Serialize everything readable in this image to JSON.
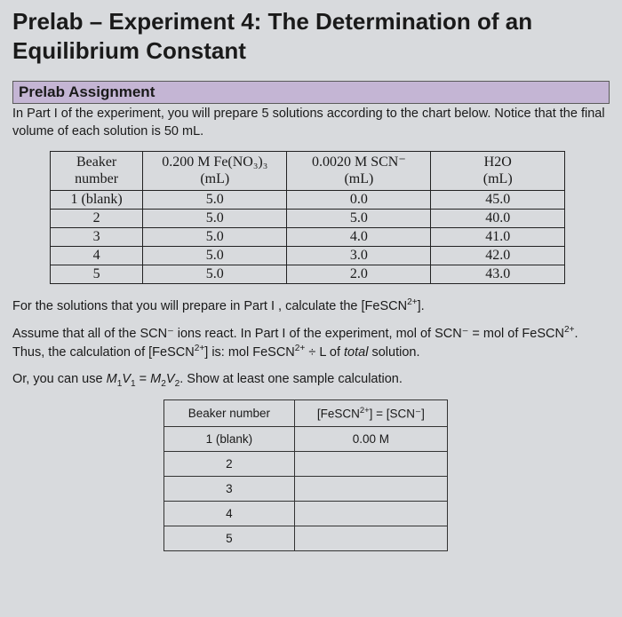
{
  "title": "Prelab – Experiment 4: The Determination of an Equilibrium Constant",
  "section_header": "Prelab Assignment",
  "intro": "In Part I of the experiment, you will prepare 5 solutions according to the chart below. Notice that the final volume of each solution is 50 mL.",
  "table1": {
    "headers": {
      "c0a": "Beaker",
      "c0b": "number",
      "c1a": "0.200 M Fe(NO₃)₃",
      "c1b": "(mL)",
      "c2a": "0.0020 M SCN⁻",
      "c2b": "(mL)",
      "c3a": "H2O",
      "c3b": "(mL)"
    },
    "col_widths": [
      "18%",
      "28%",
      "28%",
      "26%"
    ],
    "rows": [
      [
        "1 (blank)",
        "5.0",
        "0.0",
        "45.0"
      ],
      [
        "2",
        "5.0",
        "5.0",
        "40.0"
      ],
      [
        "3",
        "5.0",
        "4.0",
        "41.0"
      ],
      [
        "4",
        "5.0",
        "3.0",
        "42.0"
      ],
      [
        "5",
        "5.0",
        "2.0",
        "43.0"
      ]
    ]
  },
  "para1_html": "For the solutions that you will prepare in Part I , calculate the [FeSCN<sup>2+</sup>].",
  "para2_html": "Assume that all of the SCN⁻ ions react. In Part I of the experiment, mol of SCN⁻ = mol of FeSCN<sup>2+</sup>. Thus, the calculation of [FeSCN<sup>2+</sup>] is: mol FeSCN<sup>2+</sup> ÷ L of <i>total</i> solution.",
  "para3_html": "Or, you can use <i>M</i><sub>1</sub><i>V</i><sub>1</sub> = <i>M</i><sub>2</sub><i>V</i><sub>2</sub>. Show at least one sample calculation.",
  "table2": {
    "headers": {
      "c0": "Beaker number",
      "c1_html": "[FeSCN<sup>2+</sup>] = [SCN⁻]"
    },
    "col_widths": [
      "46%",
      "54%"
    ],
    "rows": [
      [
        "1 (blank)",
        "0.00 M"
      ],
      [
        "2",
        ""
      ],
      [
        "3",
        ""
      ],
      [
        "4",
        ""
      ],
      [
        "5",
        ""
      ]
    ]
  },
  "colors": {
    "page_bg": "#d8dadd",
    "bar_bg": "#c4b5d4",
    "border": "#222222",
    "text": "#1a1a1a"
  }
}
